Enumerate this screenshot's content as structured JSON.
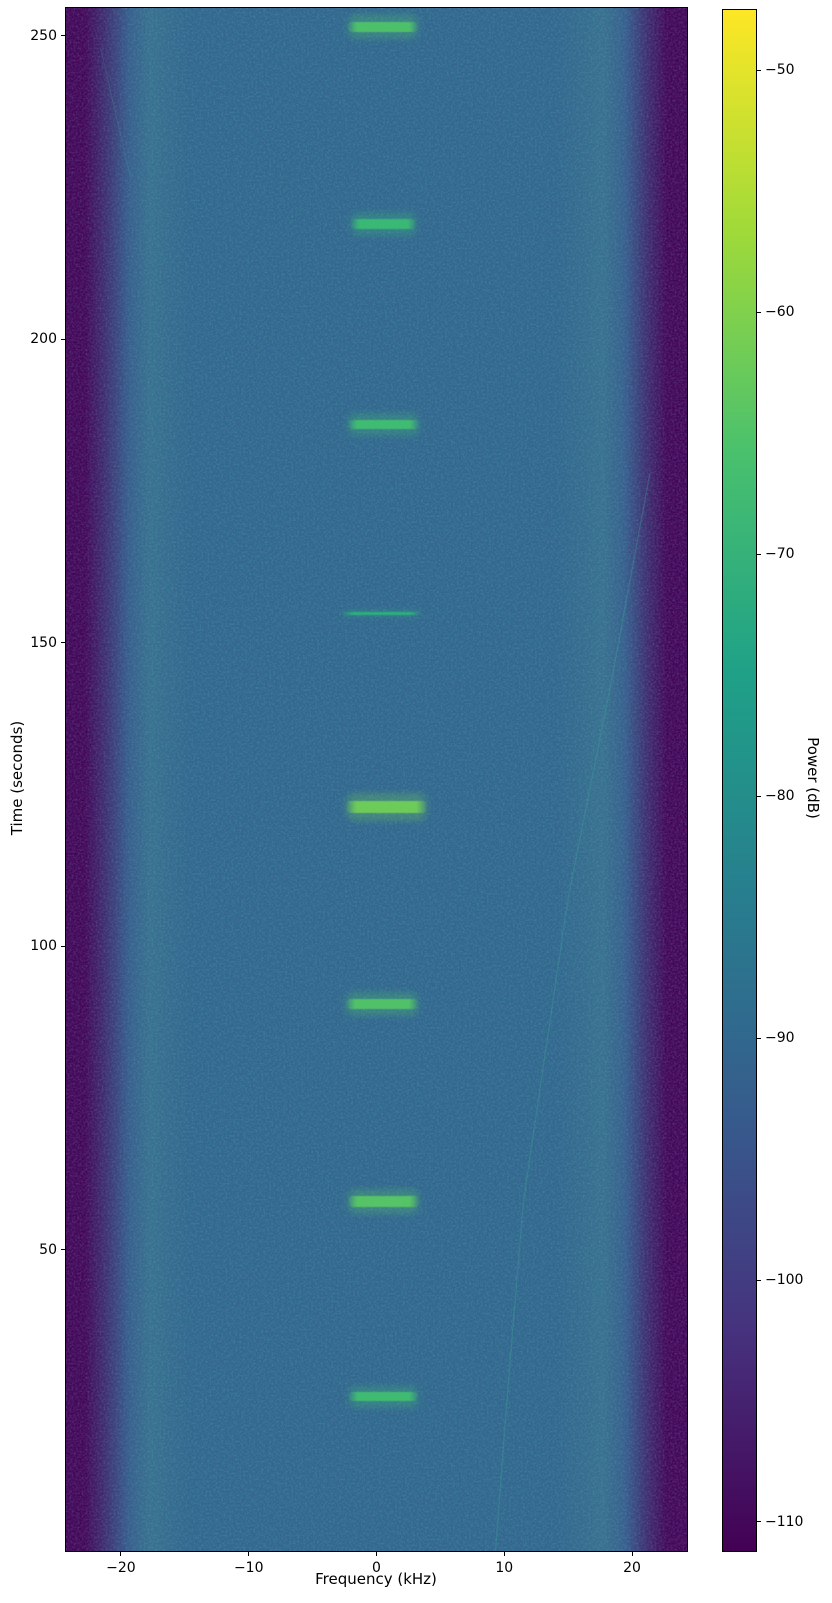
{
  "figure": {
    "kind": "spectrogram waterfall plot",
    "title": ""
  },
  "chart_data": {
    "type": "heatmap",
    "title": "",
    "xlabel": "Frequency (kHz)",
    "ylabel": "Time (seconds)",
    "colorbar_label": "Power (dB)",
    "x_ticks": [
      -20,
      -10,
      0,
      10,
      20
    ],
    "y_ticks": [
      50,
      100,
      150,
      200,
      250
    ],
    "colorbar_ticks": [
      -50,
      -60,
      -70,
      -80,
      -90,
      -100,
      -110
    ],
    "xlim": [
      -24.3,
      24.3
    ],
    "ylim": [
      0.4,
      254.6
    ],
    "clim_db": [
      -111.2,
      -47.5
    ],
    "colormap": "viridis",
    "viridis_stops": [
      "#440154",
      "#46327e",
      "#365c8d",
      "#277f8e",
      "#1fa187",
      "#4ac16d",
      "#a0da39",
      "#fde725"
    ],
    "grid": false,
    "legend": false,
    "noise_floor_db": -88,
    "band_edge_db": -110,
    "passband_khz": [
      -21.5,
      21.5
    ],
    "colors": {
      "background": "#2e6a8d",
      "shoulder": "#35748e",
      "mid_edge": "#34618c",
      "edge_transition": "#3e2a6d",
      "edge": "#440154"
    },
    "bursts": [
      {
        "time_s": 251.5,
        "f_start_khz": -2.3,
        "f_end_khz": 3.3,
        "duration_s": 1.7,
        "peak_db": -64,
        "color": "#4fc46a"
      },
      {
        "time_s": 219.0,
        "f_start_khz": -2.1,
        "f_end_khz": 3.2,
        "duration_s": 1.7,
        "peak_db": -67,
        "color": "#3abb75"
      },
      {
        "time_s": 186.0,
        "f_start_khz": -2.3,
        "f_end_khz": 3.4,
        "duration_s": 1.6,
        "peak_db": -66,
        "color": "#41bf71"
      },
      {
        "time_s": 154.8,
        "f_start_khz": -2.7,
        "f_end_khz": 3.5,
        "duration_s": 0.5,
        "peak_db": -69,
        "color": "#2db27d"
      },
      {
        "time_s": 123.0,
        "f_start_khz": -2.5,
        "f_end_khz": 4.0,
        "duration_s": 1.9,
        "peak_db": -59,
        "color": "#70cf57"
      },
      {
        "time_s": 90.5,
        "f_start_khz": -2.5,
        "f_end_khz": 3.3,
        "duration_s": 1.7,
        "peak_db": -63,
        "color": "#52c568"
      },
      {
        "time_s": 58.0,
        "f_start_khz": -2.3,
        "f_end_khz": 3.4,
        "duration_s": 1.7,
        "peak_db": -62,
        "color": "#58c766"
      },
      {
        "time_s": 25.8,
        "f_start_khz": -2.2,
        "f_end_khz": 3.3,
        "duration_s": 1.5,
        "peak_db": -66,
        "color": "#41bf71"
      }
    ],
    "sweep_artifact": {
      "description": "faint curved frequency sweep trace",
      "color": "#3fa993",
      "points_khz_s": [
        [
          9.3,
          0
        ],
        [
          10.2,
          25
        ],
        [
          11.5,
          58
        ],
        [
          15.0,
          108
        ],
        [
          18.5,
          145
        ],
        [
          21.4,
          178
        ]
      ]
    },
    "scratch_artifact": {
      "description": "faint short diagonal trace near upper-left band edge",
      "color": "#3fa993",
      "points_khz_s": [
        [
          -21.6,
          248
        ],
        [
          -19.3,
          227
        ]
      ]
    }
  }
}
